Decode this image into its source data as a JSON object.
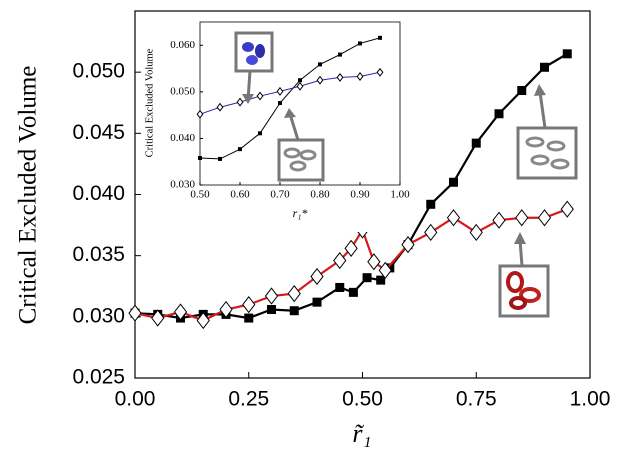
{
  "chart_data": [
    {
      "type": "line",
      "x_label": "r̃₁",
      "y_label": "Critical Excluded Volume",
      "xlim": [
        0,
        1
      ],
      "ylim": [
        0.025,
        0.055
      ],
      "xticks": [
        {
          "value": 0,
          "label": "0.00"
        },
        {
          "value": 0.25,
          "label": "0.25"
        },
        {
          "value": 0.5,
          "label": "0.50"
        },
        {
          "value": 0.75,
          "label": "0.75"
        },
        {
          "value": 1,
          "label": "1.00"
        }
      ],
      "yticks": [
        0.025,
        {
          "value": 0.03,
          "label": "0.030"
        },
        0.035,
        {
          "value": 0.04,
          "label": "0.040"
        },
        0.045,
        {
          "value": 0.05,
          "label": "0.050"
        }
      ],
      "series": [
        {
          "color": "#000000",
          "marker": "square",
          "x": [
            0,
            0.05,
            0.1,
            0.15,
            0.2,
            0.25,
            0.3,
            0.35,
            0.4,
            0.45,
            0.48,
            0.51,
            0.54,
            0.56,
            0.6,
            0.65,
            0.7,
            0.75,
            0.8,
            0.85,
            0.9,
            0.95
          ],
          "values": [
            0.0303,
            0.0302,
            0.0299,
            0.0302,
            0.0302,
            0.0299,
            0.0306,
            0.0305,
            0.0312,
            0.0324,
            0.032,
            0.0332,
            0.033,
            0.034,
            0.0359,
            0.0392,
            0.041,
            0.0442,
            0.0466,
            0.0485,
            0.0504,
            0.0515
          ]
        },
        {
          "color": "#d7191c",
          "marker": "diamond",
          "x": [
            0,
            0.05,
            0.1,
            0.15,
            0.2,
            0.25,
            0.3,
            0.35,
            0.4,
            0.45,
            0.475,
            0.5,
            0.525,
            0.55,
            0.6,
            0.65,
            0.7,
            0.75,
            0.8,
            0.85,
            0.9,
            0.95
          ],
          "values": [
            0.0303,
            0.0299,
            0.0304,
            0.0297,
            0.0306,
            0.031,
            0.0317,
            0.0319,
            0.0333,
            0.0346,
            0.0356,
            0.0371,
            0.0345,
            0.0338,
            0.0359,
            0.0369,
            0.0381,
            0.0369,
            0.0379,
            0.0381,
            0.0381,
            0.0388
          ]
        }
      ]
    },
    {
      "type": "line",
      "x_label": "r₁*",
      "y_label": "Critical Excluded Volume",
      "xlim": [
        0.5,
        1
      ],
      "ylim": [
        0.03,
        0.065
      ],
      "xticks": [
        {
          "value": 0.5,
          "label": "0.50"
        },
        {
          "value": 0.6,
          "label": "0.60"
        },
        {
          "value": 0.7,
          "label": "0.70"
        },
        {
          "value": 0.8,
          "label": "0.80"
        },
        {
          "value": 0.9,
          "label": "0.90"
        },
        {
          "value": 1,
          "label": "1.00"
        }
      ],
      "yticks": [
        {
          "value": 0.03,
          "label": "0.030"
        },
        {
          "value": 0.04,
          "label": "0.040"
        },
        {
          "value": 0.05,
          "label": "0.050"
        },
        {
          "value": 0.06,
          "label": "0.060"
        }
      ],
      "series": [
        {
          "color": "#000000",
          "marker": "square",
          "x": [
            0.5,
            0.55,
            0.6,
            0.65,
            0.7,
            0.75,
            0.8,
            0.85,
            0.9,
            0.95
          ],
          "values": [
            0.0358,
            0.0356,
            0.0377,
            0.0411,
            0.0476,
            0.0525,
            0.0559,
            0.058,
            0.0604,
            0.0616
          ]
        },
        {
          "color": "#2a2ab0",
          "marker": "diamond",
          "x": [
            0.5,
            0.55,
            0.6,
            0.65,
            0.7,
            0.75,
            0.8,
            0.85,
            0.9,
            0.95
          ],
          "values": [
            0.0452,
            0.0467,
            0.0478,
            0.0491,
            0.0501,
            0.0512,
            0.0525,
            0.0531,
            0.0533,
            0.0542
          ]
        }
      ]
    }
  ]
}
